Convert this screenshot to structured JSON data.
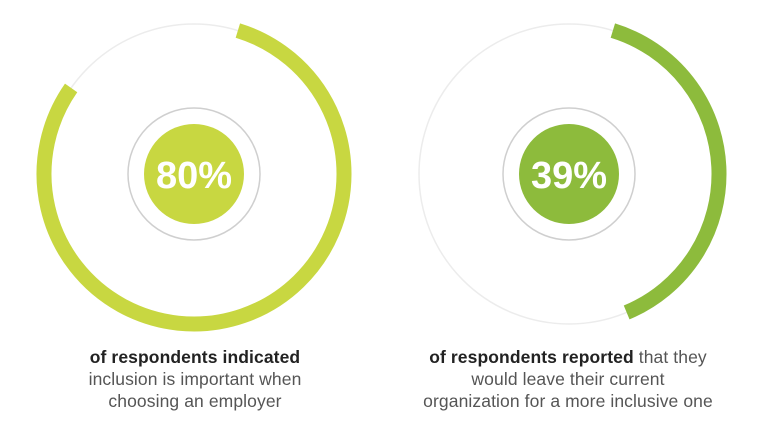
{
  "chart_data": [
    {
      "type": "donut",
      "value_percent": 80,
      "label": "80%",
      "color": "#c8d741",
      "track_color": "#ececec",
      "caption_bold": "of respondents indicated",
      "caption_rest": "inclusion is important when choosing an employer",
      "caption_lines": [
        "inclusion is important when",
        "choosing an employer"
      ]
    },
    {
      "type": "donut",
      "value_percent": 39,
      "label": "39%",
      "color": "#8dbb3c",
      "track_color": "#ececec",
      "caption_bold": "of respondents reported",
      "caption_rest": "that they would leave their current organization for a more inclusive one",
      "caption_lines_after_bold": "that they",
      "caption_lines": [
        "would leave their current",
        "organization for a more inclusive one"
      ]
    }
  ]
}
